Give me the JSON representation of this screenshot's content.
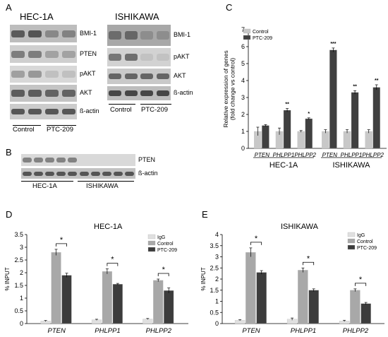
{
  "panels": {
    "A": "A",
    "B": "B",
    "C": "C",
    "D": "D",
    "E": "E"
  },
  "panelA": {
    "hec_title": "HEC-1A",
    "ishi_title": "ISHIKAWA",
    "hec_labels": [
      "BMI-1",
      "PTEN",
      "pAKT",
      "AKT",
      "ß-actin"
    ],
    "ishi_labels": [
      "BMI-1",
      "pAKT",
      "AKT",
      "ß-actin"
    ],
    "hec_groups": [
      "Control",
      "PTC-209"
    ],
    "ishi_groups": [
      "Control",
      "PTC-209"
    ]
  },
  "panelB": {
    "labels": [
      "PTEN",
      "ß-actin"
    ],
    "groups": [
      "HEC-1A",
      "ISHIKAWA"
    ]
  },
  "chart_data": [
    {
      "id": "C",
      "type": "bar",
      "categories": [
        "PTEN",
        "PHLPP1",
        "PHLPP2",
        "PTEN",
        "PHLPP1",
        "PHLPP2"
      ],
      "groups": [
        "HEC-1A",
        "ISHIKAWA"
      ],
      "series": [
        {
          "name": "Control",
          "color": "#c8c8c8",
          "values": [
            1.0,
            1.0,
            1.0,
            1.0,
            1.0,
            1.0
          ],
          "errors": [
            0.25,
            0.2,
            0.05,
            0.1,
            0.1,
            0.1
          ]
        },
        {
          "name": "PTC-209",
          "color": "#404040",
          "values": [
            1.35,
            2.25,
            1.75,
            5.8,
            3.3,
            3.6
          ],
          "errors": [
            0.05,
            0.1,
            0.05,
            0.12,
            0.1,
            0.15
          ]
        }
      ],
      "significance": [
        "",
        "**",
        "*",
        "***",
        "**",
        "**"
      ],
      "ylabel": "Relative expression of genes (fold change vs control)",
      "ylim": [
        0,
        7
      ],
      "yticks": [
        0,
        1,
        2,
        3,
        4,
        5,
        6,
        7
      ],
      "legend": "top-left"
    },
    {
      "id": "D",
      "type": "bar",
      "title": "HEC-1A",
      "categories": [
        "PTEN",
        "PHLPP1",
        "PHLPP2"
      ],
      "series": [
        {
          "name": "IgG",
          "color": "#e0e0e0",
          "values": [
            0.1,
            0.15,
            0.18
          ],
          "errors": [
            0.02,
            0.02,
            0.02
          ]
        },
        {
          "name": "Control",
          "color": "#a8a8a8",
          "values": [
            2.8,
            2.05,
            1.7
          ],
          "errors": [
            0.12,
            0.1,
            0.05
          ]
        },
        {
          "name": "PTC-209",
          "color": "#3c3c3c",
          "values": [
            1.9,
            1.55,
            1.3
          ],
          "errors": [
            0.08,
            0.03,
            0.1
          ]
        }
      ],
      "significance": [
        "*",
        "*",
        "*"
      ],
      "ylabel": "% INPUT",
      "ylim": [
        0,
        3.5
      ],
      "yticks": [
        "0",
        "0.5",
        "1",
        "1.5",
        "2",
        "2.5",
        "3",
        "3.5"
      ],
      "legend": "top-right"
    },
    {
      "id": "E",
      "type": "bar",
      "title": "ISHIKAWA",
      "categories": [
        "PTEN",
        "PHLPP1",
        "PHLPP2"
      ],
      "series": [
        {
          "name": "IgG",
          "color": "#e0e0e0",
          "values": [
            0.15,
            0.2,
            0.12
          ],
          "errors": [
            0.02,
            0.05,
            0.03
          ]
        },
        {
          "name": "Control",
          "color": "#a8a8a8",
          "values": [
            3.2,
            2.4,
            1.5
          ],
          "errors": [
            0.2,
            0.1,
            0.06
          ]
        },
        {
          "name": "PTC-209",
          "color": "#3c3c3c",
          "values": [
            2.3,
            1.5,
            0.9
          ],
          "errors": [
            0.08,
            0.06,
            0.05
          ]
        }
      ],
      "significance": [
        "*",
        "*",
        "*"
      ],
      "ylabel": "% INPUT",
      "ylim": [
        0,
        4
      ],
      "yticks": [
        "0",
        "0.5",
        "1",
        "1.5",
        "2",
        "2.5",
        "3",
        "3.5",
        "4"
      ],
      "legend": "top-right"
    }
  ]
}
